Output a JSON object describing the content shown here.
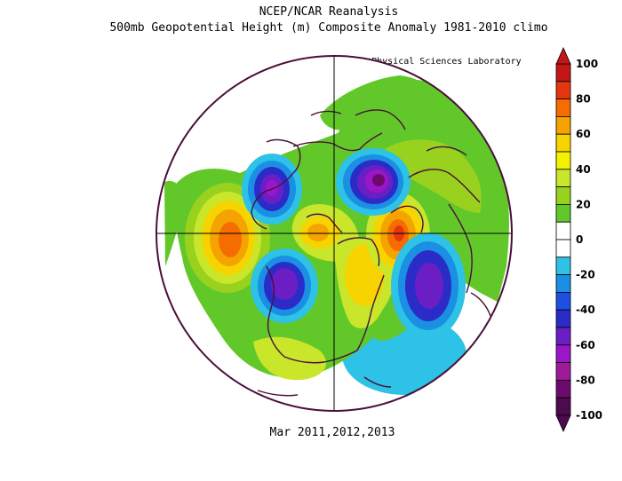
{
  "header": {
    "title": "NCEP/NCAR Reanalysis",
    "subtitle": "500mb Geopotential Height (m) Composite Anomaly 1981-2010 climo",
    "credit": "NOAA Physical Sciences Laboratory"
  },
  "footer": {
    "period": "Mar 2011,2012,2013"
  },
  "map": {
    "projection": "north-polar-stereographic",
    "background_color": "#ffffff",
    "coastline_color": "#4a0f3a"
  },
  "colorbar": {
    "ticks": [
      "100",
      "80",
      "60",
      "40",
      "20",
      "0",
      "-20",
      "-40",
      "-60",
      "-80",
      "-100"
    ],
    "colors": [
      "#c31717",
      "#e6360f",
      "#f56c00",
      "#f5a300",
      "#f7d400",
      "#f5f200",
      "#c9e62a",
      "#99d21e",
      "#62c82a",
      "#ffffff",
      "#ffffff",
      "#2dc2e6",
      "#1a8fe3",
      "#1e4fe0",
      "#2b2cc8",
      "#6b1ec4",
      "#9a16c8",
      "#9d1a9a",
      "#6e0a6e",
      "#4d0a4d"
    ]
  }
}
